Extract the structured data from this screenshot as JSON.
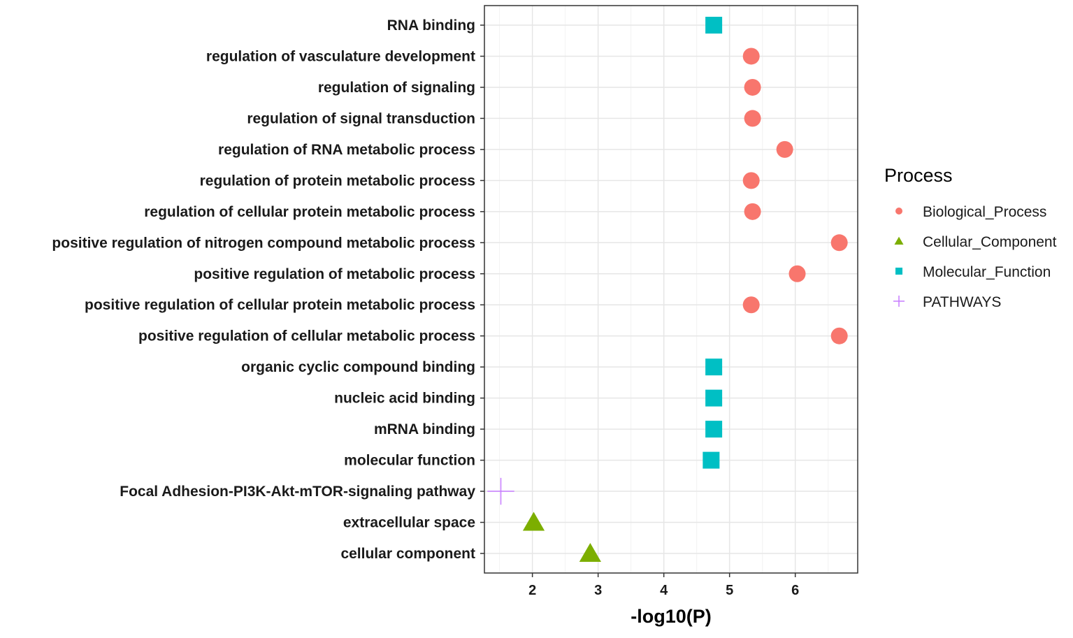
{
  "chart_data": {
    "type": "scatter",
    "title": "",
    "xlabel": "-log10(P)",
    "ylabel": "",
    "xlim": [
      1.27,
      6.95
    ],
    "xticks": [
      2,
      3,
      4,
      5,
      6
    ],
    "grid": true,
    "legend": {
      "title": "Process",
      "placement": "right",
      "entries": [
        {
          "name": "Biological_Process",
          "shape": "circle",
          "color": "#F8766D"
        },
        {
          "name": "Cellular_Component",
          "shape": "triangle",
          "color": "#7CAE00"
        },
        {
          "name": "Molecular_Function",
          "shape": "square",
          "color": "#00BFC4"
        },
        {
          "name": "PATHWAYS",
          "shape": "plus",
          "color": "#C77CFF"
        }
      ]
    },
    "points": [
      {
        "term": "RNA binding",
        "x": 4.76,
        "process": "Molecular_Function"
      },
      {
        "term": "regulation of vasculature development",
        "x": 5.33,
        "process": "Biological_Process"
      },
      {
        "term": "regulation of signaling",
        "x": 5.35,
        "process": "Biological_Process"
      },
      {
        "term": "regulation of signal transduction",
        "x": 5.35,
        "process": "Biological_Process"
      },
      {
        "term": "regulation of RNA metabolic process",
        "x": 5.84,
        "process": "Biological_Process"
      },
      {
        "term": "regulation of protein metabolic process",
        "x": 5.33,
        "process": "Biological_Process"
      },
      {
        "term": "regulation of cellular protein metabolic process",
        "x": 5.35,
        "process": "Biological_Process"
      },
      {
        "term": "positive regulation of nitrogen compound metabolic process",
        "x": 6.67,
        "process": "Biological_Process"
      },
      {
        "term": "positive regulation of metabolic process",
        "x": 6.03,
        "process": "Biological_Process"
      },
      {
        "term": "positive regulation of cellular protein metabolic process",
        "x": 5.33,
        "process": "Biological_Process"
      },
      {
        "term": "positive regulation of cellular metabolic process",
        "x": 6.67,
        "process": "Biological_Process"
      },
      {
        "term": "organic cyclic compound binding",
        "x": 4.76,
        "process": "Molecular_Function"
      },
      {
        "term": "nucleic acid binding",
        "x": 4.76,
        "process": "Molecular_Function"
      },
      {
        "term": "mRNA binding",
        "x": 4.76,
        "process": "Molecular_Function"
      },
      {
        "term": "molecular function",
        "x": 4.72,
        "process": "Molecular_Function"
      },
      {
        "term": "Focal Adhesion-PI3K-Akt-mTOR-signaling pathway",
        "x": 1.52,
        "process": "PATHWAYS"
      },
      {
        "term": "extracellular space",
        "x": 2.02,
        "process": "Cellular_Component"
      },
      {
        "term": "cellular component",
        "x": 2.88,
        "process": "Cellular_Component"
      }
    ]
  }
}
